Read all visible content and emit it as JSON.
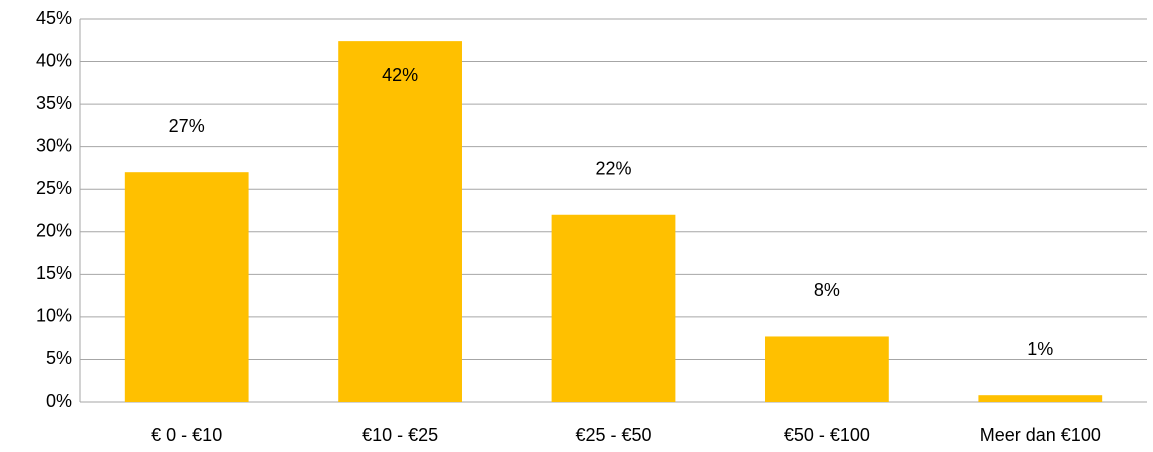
{
  "chart_data": {
    "type": "bar",
    "categories": [
      "€ 0 - €10",
      "€10 - €25",
      "€25 - €50",
      "€50 - €100",
      "Meer dan €100"
    ],
    "values": [
      27,
      42.4,
      22,
      7.7,
      0.8
    ],
    "value_labels": [
      "27%",
      "42%",
      "22%",
      "8%",
      "1%"
    ],
    "color": "#ffc000",
    "ylim": [
      0,
      45
    ],
    "yticks": [
      {
        "value": 0,
        "label": "0%"
      },
      {
        "value": 5,
        "label": "5%"
      },
      {
        "value": 10,
        "label": "10%"
      },
      {
        "value": 15,
        "label": "15%"
      },
      {
        "value": 20,
        "label": "20%"
      },
      {
        "value": 25,
        "label": "25%"
      },
      {
        "value": 30,
        "label": "30%"
      },
      {
        "value": 35,
        "label": "35%"
      },
      {
        "value": 40,
        "label": "40%"
      },
      {
        "value": 45,
        "label": "45%"
      }
    ],
    "grid": true
  }
}
